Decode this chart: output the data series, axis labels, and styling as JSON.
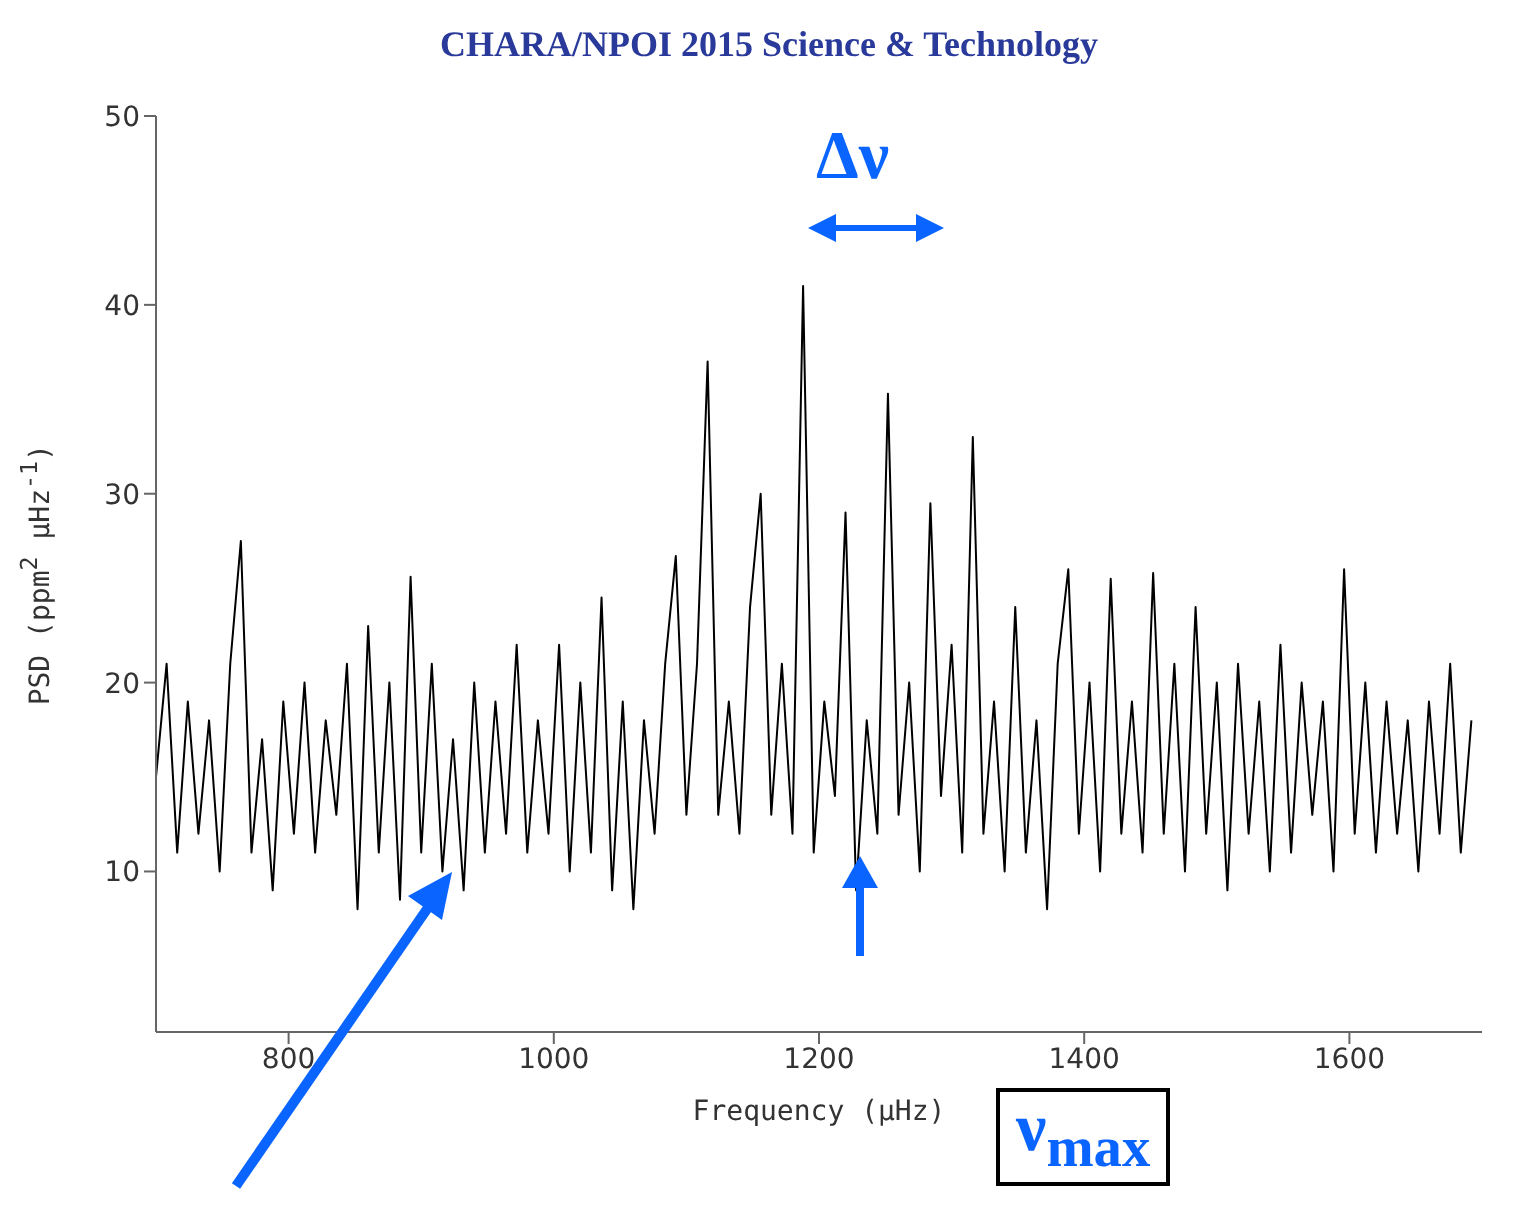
{
  "chart_data": {
    "type": "line",
    "title": "CHARA/NPOI 2015 Science & Technology",
    "xlabel": "Frequency (μHz)",
    "ylabel": "PSD (ppm$^{2}$ μHz$^{-1}$)",
    "annotations": [
      "Δν",
      "ν$_{max}$"
    ],
    "xlim": [
      700,
      1700
    ],
    "xticks": [
      800,
      1000,
      1200,
      1400,
      1600
    ],
    "ylim": [
      1.5,
      50
    ],
    "yticks": [
      10,
      20,
      30,
      40,
      50
    ],
    "x": [
      700,
      708,
      716,
      724,
      732,
      740,
      748,
      756,
      764,
      772,
      780,
      788,
      796,
      804,
      812,
      820,
      828,
      836,
      844,
      852,
      860,
      868,
      876,
      884,
      892,
      900,
      908,
      916,
      924,
      932,
      940,
      948,
      956,
      964,
      972,
      980,
      988,
      996,
      1004,
      1012,
      1020,
      1028,
      1036,
      1044,
      1052,
      1060,
      1068,
      1076,
      1084,
      1092,
      1100,
      1108,
      1116,
      1124,
      1132,
      1140,
      1148,
      1156,
      1164,
      1172,
      1180,
      1188,
      1196,
      1204,
      1212,
      1220,
      1228,
      1236,
      1244,
      1252,
      1260,
      1268,
      1276,
      1284,
      1292,
      1300,
      1308,
      1316,
      1324,
      1332,
      1340,
      1348,
      1356,
      1364,
      1372,
      1380,
      1388,
      1396,
      1404,
      1412,
      1420,
      1428,
      1436,
      1444,
      1452,
      1460,
      1468,
      1476,
      1484,
      1492,
      1500,
      1508,
      1516,
      1524,
      1532,
      1540,
      1548,
      1556,
      1564,
      1572,
      1580,
      1588,
      1596,
      1604,
      1612,
      1620,
      1628,
      1636,
      1644,
      1652,
      1660,
      1668,
      1676,
      1684,
      1692
    ],
    "series": [
      {
        "color": "#000000",
        "values": [
          15,
          21,
          11,
          19,
          12,
          18,
          10,
          21,
          27.5,
          11,
          17,
          9,
          19,
          12,
          20,
          11,
          18,
          13,
          21,
          8,
          23,
          11,
          20,
          8.5,
          25.6,
          11,
          21,
          10,
          17,
          9,
          20,
          11,
          19,
          12,
          22,
          11,
          18,
          12,
          22,
          10,
          20,
          11,
          24.5,
          9,
          19,
          8,
          18,
          12,
          21,
          26.7,
          13,
          21,
          37,
          13,
          19,
          12,
          24,
          30,
          13,
          21,
          12,
          41,
          11,
          19,
          14,
          29,
          9,
          18,
          12,
          35.3,
          13,
          20,
          10,
          29.5,
          14,
          22,
          11,
          33,
          12,
          19,
          10,
          24,
          11,
          18,
          8,
          21,
          26,
          12,
          20,
          10,
          25.5,
          12,
          19,
          11,
          25.8,
          12,
          21,
          10,
          24,
          12,
          20,
          9,
          21,
          12,
          19,
          10,
          22,
          11,
          20,
          13,
          19,
          10,
          26,
          12,
          20,
          11,
          19,
          12,
          18,
          10,
          19,
          12,
          21,
          11,
          18
        ]
      }
    ]
  }
}
